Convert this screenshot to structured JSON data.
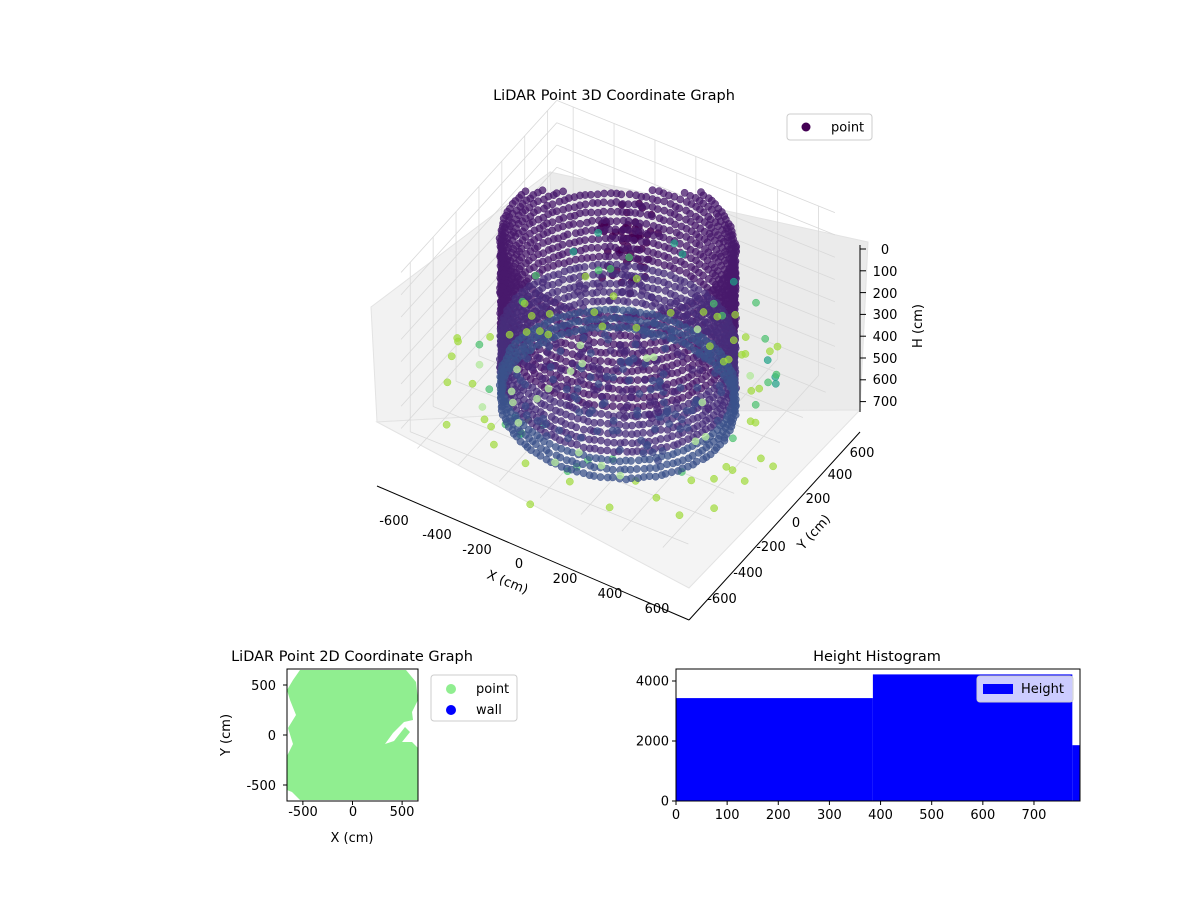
{
  "chart_data": [
    {
      "type": "scatter",
      "title": "LiDAR Point 3D Coordinate Graph",
      "xlabel": "X (cm)",
      "ylabel": "Y (cm)",
      "zlabel": "H (cm)",
      "xlim": [
        -680,
        680
      ],
      "ylim": [
        -680,
        680
      ],
      "zlim": [
        0,
        760
      ],
      "z_inverted": true,
      "x_ticks": [
        "-600",
        "-400",
        "-200",
        "0",
        "200",
        "400",
        "600"
      ],
      "y_ticks": [
        "-600",
        "-400",
        "-200",
        "0",
        "200",
        "400",
        "600"
      ],
      "z_ticks": [
        "0",
        "100",
        "200",
        "300",
        "400",
        "500",
        "600",
        "700"
      ],
      "legend": [
        "point"
      ],
      "legend_position": "upper-right",
      "grid": true,
      "colormap": "viridis",
      "series": [
        {
          "name": "point",
          "description_color": "#440154"
        }
      ],
      "wall_ring": {
        "radius_cm": 500,
        "height_top_cm": 0,
        "height_bottom_cm": 750
      }
    },
    {
      "type": "scatter",
      "title": "LiDAR Point 2D Coordinate Graph",
      "xlabel": "X (cm)",
      "ylabel": "Y (cm)",
      "xlim": [
        -660,
        660
      ],
      "ylim": [
        -660,
        660
      ],
      "x_ticks": [
        "-500",
        "0",
        "500"
      ],
      "y_ticks": [
        "-500",
        "0",
        "500"
      ],
      "legend": [
        "point",
        "wall"
      ],
      "legend_position": "outside-right",
      "series": [
        {
          "name": "point",
          "color": "#90ee90"
        },
        {
          "name": "wall",
          "color": "#0000ff"
        }
      ]
    },
    {
      "type": "bar",
      "title": "Height Histogram",
      "xlim": [
        0,
        790
      ],
      "ylim": [
        0,
        4400
      ],
      "x_ticks": [
        "0",
        "100",
        "200",
        "300",
        "400",
        "500",
        "600",
        "700"
      ],
      "y_ticks": [
        "0",
        "2000",
        "4000"
      ],
      "legend": [
        "Height"
      ],
      "legend_position": "upper-right",
      "series": [
        {
          "name": "Height",
          "color": "#0000ff",
          "bins": [
            {
              "x0": 0,
              "x1": 385,
              "value": 3430
            },
            {
              "x0": 385,
              "x1": 775,
              "value": 4220
            },
            {
              "x0": 775,
              "x1": 790,
              "value": 1860
            }
          ]
        }
      ]
    }
  ]
}
